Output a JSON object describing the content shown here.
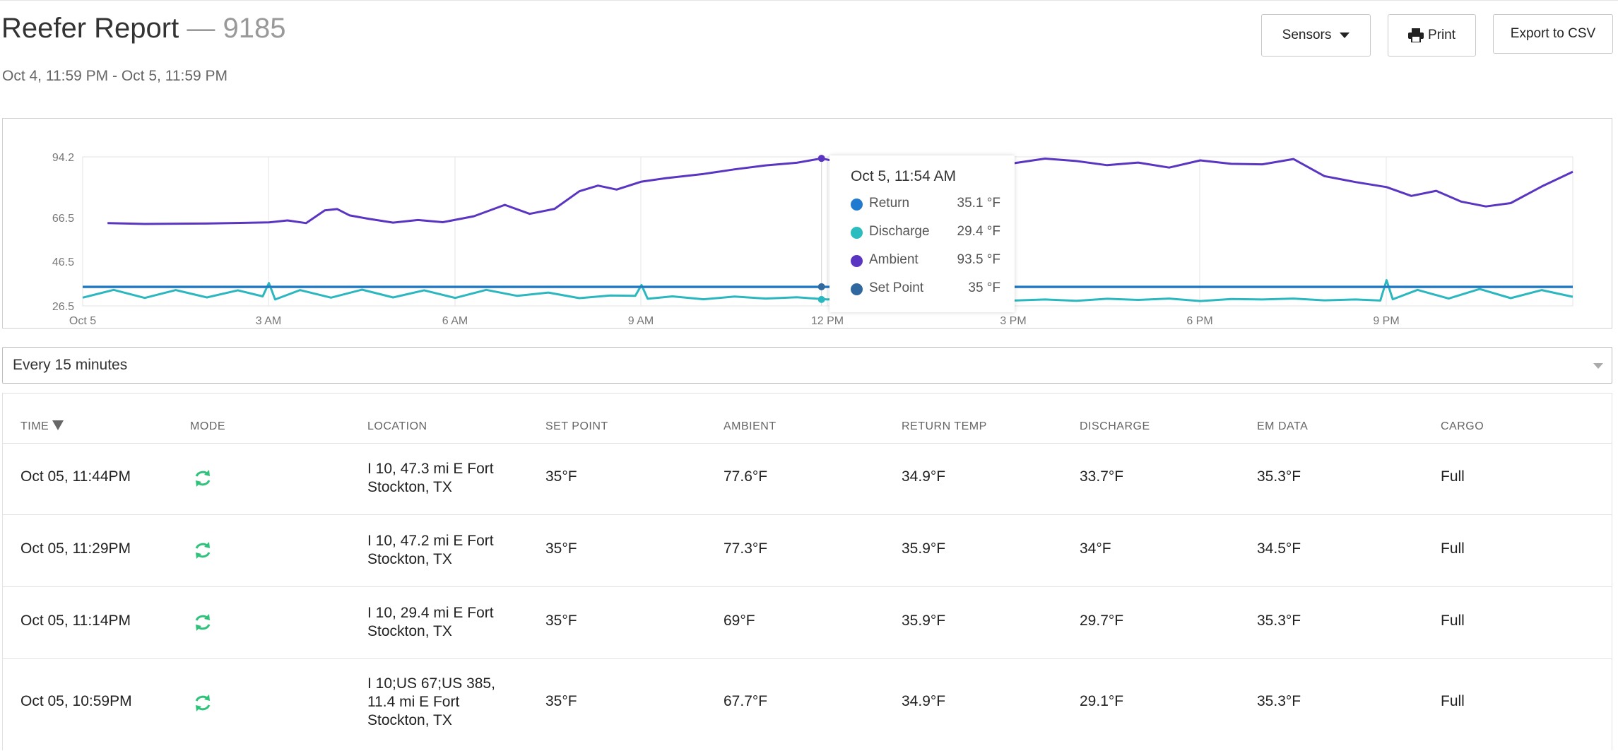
{
  "header": {
    "title": "Reefer Report",
    "separator": "—",
    "unit_number": "9185",
    "date_range": "Oct 4, 11:59 PM - Oct 5, 11:59 PM"
  },
  "toolbar": {
    "sensors_label": "Sensors",
    "print_label": "Print",
    "export_label": "Export to CSV"
  },
  "chart_data": {
    "type": "line",
    "y_ticks": [
      "94.2",
      "66.5",
      "46.5",
      "26.5"
    ],
    "x_ticks": [
      "Oct 5",
      "3 AM",
      "6 AM",
      "9 AM",
      "12 PM",
      "3 PM",
      "6 PM",
      "9 PM"
    ],
    "ylim": [
      26.5,
      94.2
    ],
    "xlim_hours": [
      0,
      24
    ],
    "grid": true,
    "series": [
      {
        "name": "Ambient",
        "color": "#5a35c2",
        "x": [
          0.4,
          1.0,
          2.0,
          3.0,
          3.3,
          3.6,
          3.9,
          4.1,
          4.3,
          4.6,
          5.0,
          5.4,
          5.8,
          6.3,
          6.8,
          7.2,
          7.6,
          8.0,
          8.3,
          8.6,
          9.0,
          9.4,
          10.0,
          10.5,
          11.0,
          11.5,
          11.9,
          12.4,
          13.0,
          13.5,
          14.0,
          14.5,
          15.0,
          15.5,
          16.0,
          16.5,
          17.0,
          17.5,
          18.0,
          18.5,
          19.0,
          19.5,
          20.0,
          20.5,
          21.0,
          21.4,
          21.8,
          22.2,
          22.6,
          23.0,
          23.5,
          24.0
        ],
        "y": [
          64,
          63.6,
          63.8,
          64.3,
          65.2,
          64,
          69.8,
          70.4,
          67.5,
          66,
          64.2,
          65.4,
          64.4,
          67.1,
          72.3,
          68.2,
          70.5,
          78.5,
          81.1,
          79.3,
          82.9,
          84.5,
          86.4,
          88.5,
          90.3,
          91.5,
          93.5,
          90.5,
          92.4,
          91.2,
          89.9,
          92.4,
          91.3,
          93.4,
          92.3,
          90.4,
          91.6,
          89.3,
          92.6,
          91.0,
          90.8,
          93.2,
          85.4,
          82.7,
          80.4,
          76.4,
          78.7,
          73.8,
          71.6,
          73.1,
          80.7,
          87.4
        ]
      },
      {
        "name": "Set Point",
        "color": "#2f679f",
        "x": [
          0,
          24
        ],
        "y": [
          35,
          35
        ]
      },
      {
        "name": "Discharge",
        "color": "#2bb7c0",
        "x": [
          0.0,
          0.5,
          1.0,
          1.5,
          2.0,
          2.5,
          2.9,
          3.0,
          3.1,
          3.5,
          4.0,
          4.5,
          5.0,
          5.5,
          6.0,
          6.5,
          7.0,
          7.5,
          8.0,
          8.5,
          8.9,
          9.0,
          9.1,
          9.5,
          10.0,
          10.5,
          11.0,
          11.5,
          12.0,
          12.5,
          12.9,
          13.0,
          13.1,
          13.5,
          14.0,
          14.5,
          15.0,
          15.5,
          16.0,
          16.5,
          17.0,
          17.5,
          18.0,
          18.5,
          19.0,
          19.5,
          20.0,
          20.5,
          20.9,
          21.0,
          21.1,
          21.5,
          22.0,
          22.5,
          23.0,
          23.5,
          24.0
        ],
        "y": [
          30.2,
          33.7,
          30.1,
          33.6,
          30.3,
          33.5,
          30.8,
          36.8,
          29.4,
          33.6,
          30.2,
          33.8,
          30.3,
          33.5,
          30.1,
          33.7,
          31.0,
          32.5,
          30.0,
          31.2,
          31.0,
          35.9,
          29.7,
          30.8,
          29.5,
          30.7,
          29.8,
          30.4,
          29.4,
          30.7,
          29.0,
          37.8,
          27.2,
          29.1,
          28.6,
          29.6,
          28.9,
          29.4,
          28.8,
          29.7,
          29.2,
          29.8,
          28.7,
          29.6,
          29.4,
          29.8,
          29.0,
          29.4,
          28.9,
          38.1,
          29.5,
          33.7,
          29.8,
          34.1,
          30.0,
          33.6,
          30.6
        ]
      },
      {
        "name": "Return",
        "color": "#1f78c4",
        "x": [
          0,
          24
        ],
        "y": [
          35.1,
          35.1
        ]
      }
    ],
    "tooltip": {
      "title": "Oct 5, 11:54 AM",
      "items": [
        {
          "name": "Return",
          "value": "35.1 °F",
          "color": "#1f7ad0"
        },
        {
          "name": "Discharge",
          "value": "29.4 °F",
          "color": "#2bbcbf"
        },
        {
          "name": "Ambient",
          "value": "93.5 °F",
          "color": "#5a35c2"
        },
        {
          "name": "Set Point",
          "value": "35 °F",
          "color": "#2f679f"
        }
      ]
    }
  },
  "interval_select": {
    "value": "Every 15 minutes"
  },
  "table": {
    "columns": [
      "TIME",
      "MODE",
      "LOCATION",
      "SET POINT",
      "AMBIENT",
      "RETURN TEMP",
      "DISCHARGE",
      "EM DATA",
      "CARGO"
    ],
    "rows": [
      {
        "time": "Oct 05, 11:44PM",
        "mode": "refresh-icon",
        "location": "I 10, 47.3 mi E Fort Stockton, TX",
        "set_point": "35°F",
        "ambient": "77.6°F",
        "return_temp": "34.9°F",
        "discharge": "33.7°F",
        "em_data": "35.3°F",
        "cargo": "Full"
      },
      {
        "time": "Oct 05, 11:29PM",
        "mode": "refresh-icon",
        "location": "I 10, 47.2 mi E Fort Stockton, TX",
        "set_point": "35°F",
        "ambient": "77.3°F",
        "return_temp": "35.9°F",
        "discharge": "34°F",
        "em_data": "34.5°F",
        "cargo": "Full"
      },
      {
        "time": "Oct 05, 11:14PM",
        "mode": "refresh-icon",
        "location": "I 10, 29.4 mi E Fort Stockton, TX",
        "set_point": "35°F",
        "ambient": "69°F",
        "return_temp": "35.9°F",
        "discharge": "29.7°F",
        "em_data": "35.3°F",
        "cargo": "Full"
      },
      {
        "time": "Oct 05, 10:59PM",
        "mode": "refresh-icon",
        "location": "I 10;US 67;US 385, 11.4 mi E Fort Stockton, TX",
        "set_point": "35°F",
        "ambient": "67.7°F",
        "return_temp": "34.9°F",
        "discharge": "29.1°F",
        "em_data": "35.3°F",
        "cargo": "Full"
      }
    ]
  },
  "colors": {
    "mode_icon": "#2fc27a",
    "ambient": "#5a35c2",
    "discharge": "#2bb7c0",
    "set_point": "#2f679f"
  }
}
